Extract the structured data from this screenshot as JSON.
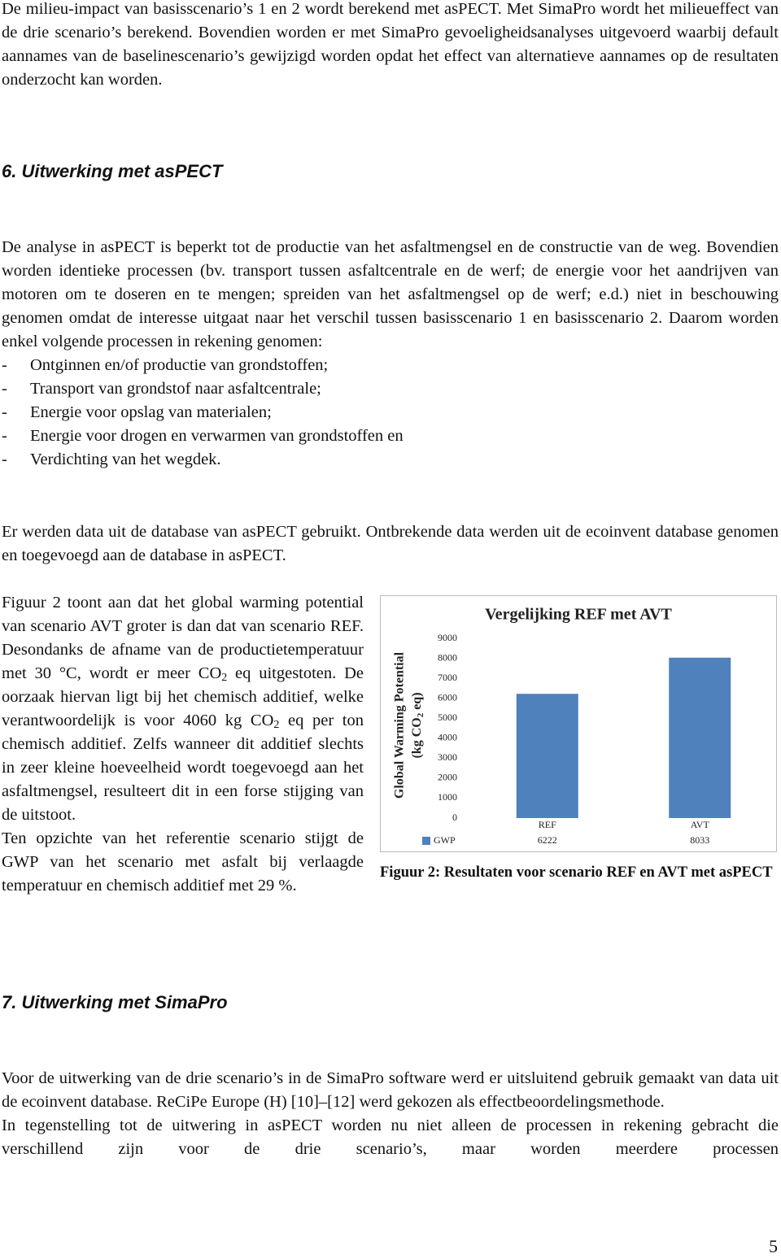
{
  "intro": "De milieu-impact van basisscenario’s 1 en 2 wordt berekend met asPECT. Met SimaPro wordt het milieueffect van de drie scenario’s berekend. Bovendien worden er met SimaPro gevoeligheidsanalyses uitgevoerd waarbij default aannames van de baselinescenario’s gewijzigd worden opdat het effect van alternatieve aannames op de resultaten onderzocht kan worden.",
  "heading_6": "6. Uitwerking met asPECT",
  "aspect_intro": "De analyse in asPECT is beperkt tot de productie van het asfaltmengsel en de constructie van de weg. Bovendien worden identieke processen (bv. transport tussen asfaltcentrale en de werf; de energie voor het aandrijven van motoren om te doseren en te mengen; spreiden van het asfaltmengsel op de werf; e.d.) niet in beschouwing genomen omdat de interesse uitgaat naar het verschil tussen basisscenario 1 en basisscenario 2. Daarom worden enkel volgende processen in rekening genomen:",
  "list_marker": "-",
  "process_list": [
    "Ontginnen en/of productie van grondstoffen;",
    "Transport van grondstof naar asfaltcentrale;",
    "Energie voor opslag van materialen;",
    "Energie voor drogen en verwarmen van grondstoffen en",
    "Verdichting van het wegdek."
  ],
  "data_source": "Er werden data uit de database van asPECT gebruikt. Ontbrekende data werden uit de ecoinvent database genomen en toegevoegd aan de database in asPECT.",
  "figure_text": [
    "Figuur 2 toont aan dat het global warming potential van scenario AVT groter is dan dat van scenario REF. Desondanks de afname van de productietemperatuur met 30 °C, wordt er meer CO",
    "2",
    " eq uitgestoten. De oorzaak hiervan ligt bij het chemisch additief, welke verantwoordelijk is voor 4060 kg CO",
    "2",
    " eq per ton chemisch additief. Zelfs wanneer dit additief slechts in zeer kleine hoeveelheid wordt toegevoegd aan het asfaltmengsel, resulteert dit in een forse stijging van de uitstoot."
  ],
  "gwp_increase": "Ten opzichte van het referentie scenario stijgt de GWP van het scenario met asfalt bij verlaagde temperatuur en chemisch additief met 29 %.",
  "figure_caption": "Figuur 2: Resultaten voor scenario REF en AVT met asPECT",
  "chart_data": {
    "type": "bar",
    "title": "Vergelijking REF met AVT",
    "ylabel": "Global Warming Potential",
    "ylabel_unit": [
      "(kg CO",
      "2",
      " eq)"
    ],
    "categories": [
      "REF",
      "AVT"
    ],
    "series": [
      {
        "name": "GWP",
        "color": "#4f81bd",
        "values": [
          6222,
          8033
        ]
      }
    ],
    "ylim": [
      0,
      9000
    ],
    "yticks": [
      0,
      1000,
      2000,
      3000,
      4000,
      5000,
      6000,
      7000,
      8000,
      9000
    ],
    "grid": false
  },
  "heading_7": "7. Uitwerking met SimaPro",
  "simapro_intro": "Voor de uitwerking van de drie scenario’s in de SimaPro software werd er uitsluitend gebruik gemaakt van data uit de ecoinvent database. ReCiPe Europe (H) [10]–[12] werd gekozen als effectbeoordelingsmethode.",
  "simapro_processes": "In tegenstelling tot de uitwering in asPECT worden nu niet alleen de processen in rekening gebracht die verschillend zijn voor de drie scenario’s, maar worden meerdere processen",
  "page_number": "5"
}
